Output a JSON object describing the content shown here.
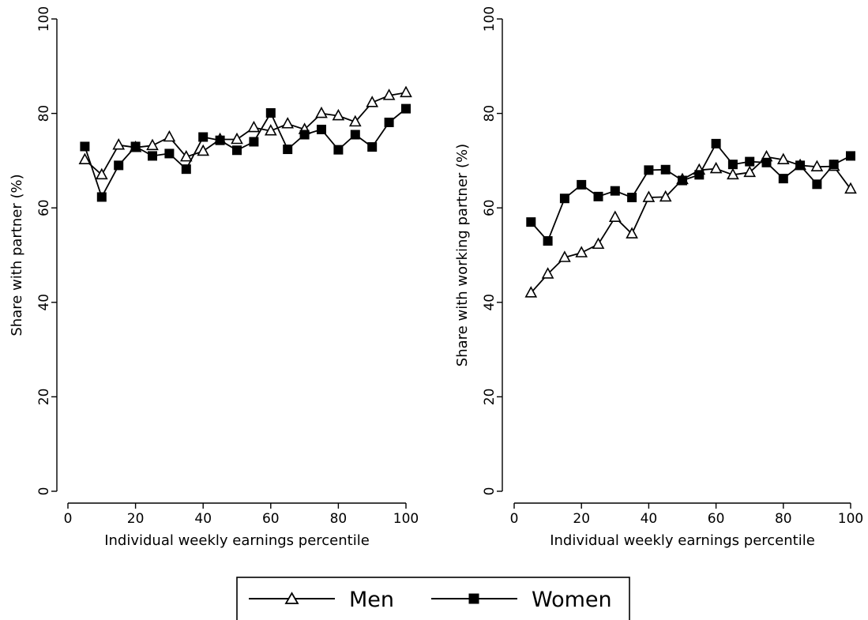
{
  "chart_data": [
    {
      "type": "line",
      "xlabel": "Individual weekly earnings percentile",
      "ylabel": "Share with partner (%)",
      "xlim": [
        0,
        100
      ],
      "ylim": [
        0,
        100
      ],
      "xticks": [
        0,
        20,
        40,
        60,
        80,
        100
      ],
      "yticks": [
        0,
        20,
        40,
        60,
        80,
        100
      ],
      "grid": false,
      "x": [
        5,
        10,
        15,
        20,
        25,
        30,
        35,
        40,
        45,
        50,
        55,
        60,
        65,
        70,
        75,
        80,
        85,
        90,
        95,
        100
      ],
      "series": [
        {
          "name": "Men",
          "marker": "hollow-triangle",
          "values": [
            70.2,
            67.0,
            73.3,
            72.8,
            73.2,
            75.0,
            70.8,
            72.0,
            74.5,
            74.5,
            77.0,
            76.3,
            77.8,
            76.6,
            80.0,
            79.5,
            78.2,
            82.3,
            83.8,
            84.4
          ]
        },
        {
          "name": "Women",
          "marker": "filled-square",
          "values": [
            73.0,
            62.3,
            69.0,
            73.0,
            71.0,
            71.5,
            68.2,
            75.0,
            74.3,
            72.2,
            74.0,
            80.1,
            72.4,
            75.5,
            76.6,
            72.3,
            75.5,
            72.9,
            78.1,
            81.0
          ]
        }
      ]
    },
    {
      "type": "line",
      "xlabel": "Individual weekly earnings percentile",
      "ylabel": "Share with working partner (%)",
      "xlim": [
        0,
        100
      ],
      "ylim": [
        0,
        100
      ],
      "xticks": [
        0,
        20,
        40,
        60,
        80,
        100
      ],
      "yticks": [
        0,
        20,
        40,
        60,
        80,
        100
      ],
      "grid": false,
      "x": [
        5,
        10,
        15,
        20,
        25,
        30,
        35,
        40,
        45,
        50,
        55,
        60,
        65,
        70,
        75,
        80,
        85,
        90,
        95,
        100
      ],
      "series": [
        {
          "name": "Men",
          "marker": "hollow-triangle",
          "values": [
            42.0,
            46.0,
            49.5,
            50.5,
            52.3,
            58.0,
            54.5,
            62.2,
            62.3,
            66.0,
            68.0,
            68.3,
            67.0,
            67.5,
            70.8,
            70.2,
            69.0,
            68.7,
            68.8,
            64.0
          ]
        },
        {
          "name": "Women",
          "marker": "filled-square",
          "values": [
            57.0,
            53.0,
            62.0,
            64.9,
            62.4,
            63.6,
            62.2,
            68.0,
            68.1,
            65.8,
            67.0,
            73.6,
            69.2,
            69.8,
            69.6,
            66.2,
            69.0,
            65.0,
            69.2,
            71.0
          ]
        }
      ]
    }
  ],
  "legend": {
    "placement": "bottom-center",
    "items": [
      {
        "label": "Men",
        "marker": "hollow-triangle"
      },
      {
        "label": "Women",
        "marker": "filled-square"
      }
    ]
  }
}
